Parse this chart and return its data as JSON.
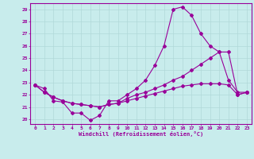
{
  "xlabel": "Windchill (Refroidissement éolien,°C)",
  "bg_color": "#c8ecec",
  "line_color": "#990099",
  "grid_color": "#b0d8d8",
  "yticks": [
    20,
    21,
    22,
    23,
    24,
    25,
    26,
    27,
    28,
    29
  ],
  "xticks": [
    0,
    1,
    2,
    3,
    4,
    5,
    6,
    7,
    8,
    9,
    10,
    11,
    12,
    13,
    14,
    15,
    16,
    17,
    18,
    19,
    20,
    21,
    22,
    23
  ],
  "line1_x": [
    0,
    1,
    2,
    3,
    4,
    5,
    6,
    7,
    8,
    9,
    10,
    11,
    12,
    13,
    14,
    15,
    16,
    17,
    18,
    19,
    20,
    21,
    22,
    23
  ],
  "line1_y": [
    22.8,
    22.5,
    21.5,
    21.4,
    20.5,
    20.5,
    19.9,
    20.3,
    21.5,
    21.5,
    22.0,
    22.5,
    23.2,
    24.4,
    26.0,
    29.0,
    29.2,
    28.5,
    27.0,
    26.0,
    25.5,
    23.2,
    22.2,
    22.2
  ],
  "line2_x": [
    0,
    1,
    2,
    3,
    4,
    5,
    6,
    7,
    8,
    9,
    10,
    11,
    12,
    13,
    14,
    15,
    16,
    17,
    18,
    19,
    20,
    21,
    22,
    23
  ],
  "line2_y": [
    22.8,
    22.2,
    21.8,
    21.5,
    21.3,
    21.2,
    21.1,
    21.0,
    21.2,
    21.3,
    21.7,
    22.0,
    22.2,
    22.5,
    22.8,
    23.2,
    23.5,
    24.0,
    24.5,
    25.0,
    25.5,
    25.5,
    22.0,
    22.2
  ],
  "line3_x": [
    0,
    1,
    2,
    3,
    4,
    5,
    6,
    7,
    8,
    9,
    10,
    11,
    12,
    13,
    14,
    15,
    16,
    17,
    18,
    19,
    20,
    21,
    22,
    23
  ],
  "line3_y": [
    22.8,
    22.2,
    21.8,
    21.5,
    21.3,
    21.2,
    21.1,
    21.0,
    21.2,
    21.3,
    21.5,
    21.7,
    21.9,
    22.1,
    22.3,
    22.5,
    22.7,
    22.8,
    22.9,
    22.9,
    22.9,
    22.8,
    22.0,
    22.2
  ]
}
